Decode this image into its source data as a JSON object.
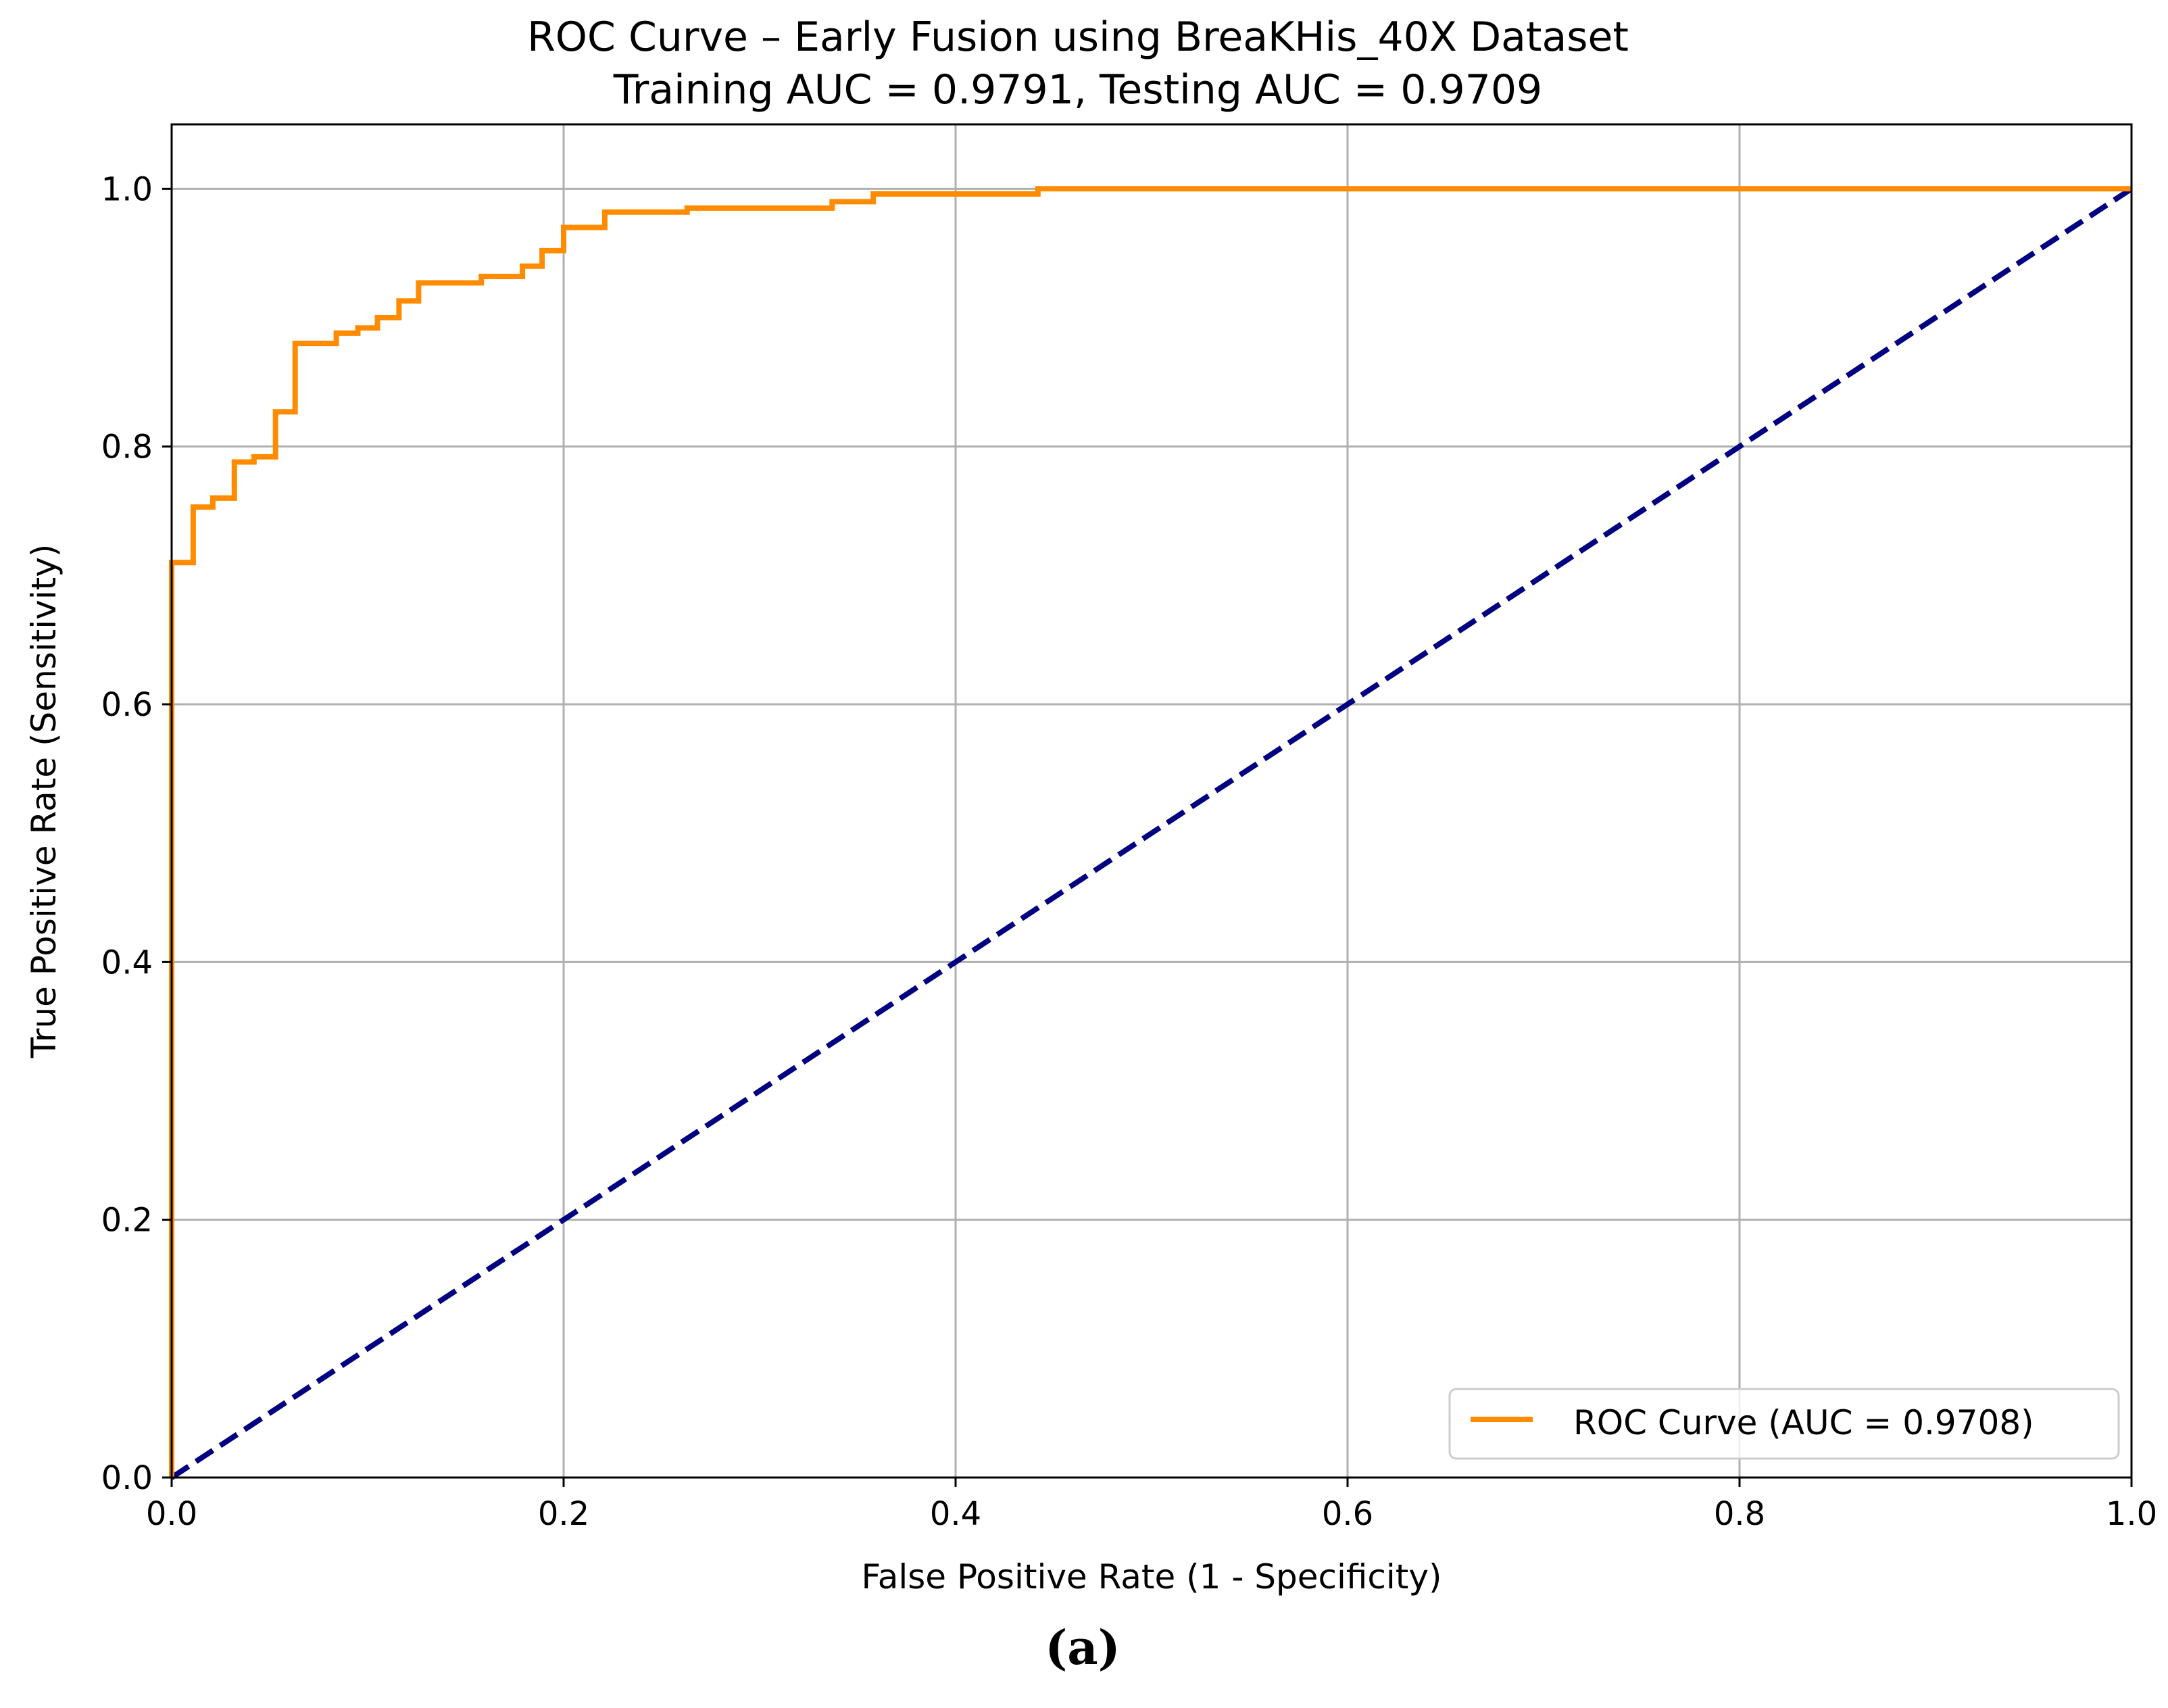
{
  "chart_data": {
    "type": "line",
    "title": "ROC Curve – Early Fusion using BreaKHis_40X Dataset",
    "subtitle": "Training AUC = 0.9791, Testing AUC = 0.9709",
    "xlabel": "False Positive Rate (1 - Specificity)",
    "ylabel": "True Positive Rate (Sensitivity)",
    "xlim": [
      0.0,
      1.0
    ],
    "ylim": [
      0.0,
      1.05
    ],
    "x_ticks": [
      "0.0",
      "0.2",
      "0.4",
      "0.6",
      "0.8",
      "1.0"
    ],
    "y_ticks": [
      "0.0",
      "0.2",
      "0.4",
      "0.6",
      "0.8",
      "1.0"
    ],
    "grid": true,
    "legend_position": "bottom-right",
    "series": [
      {
        "name": "ROC Curve (AUC = 0.9708)",
        "color": "#ff8c00",
        "style": "step",
        "x": [
          0.0,
          0.0,
          0.011,
          0.011,
          0.021,
          0.021,
          0.032,
          0.032,
          0.042,
          0.042,
          0.053,
          0.053,
          0.063,
          0.063,
          0.084,
          0.084,
          0.095,
          0.095,
          0.105,
          0.105,
          0.116,
          0.116,
          0.126,
          0.126,
          0.158,
          0.158,
          0.179,
          0.179,
          0.189,
          0.189,
          0.2,
          0.2,
          0.221,
          0.221,
          0.263,
          0.263,
          0.337,
          0.337,
          0.358,
          0.358,
          0.442,
          0.442,
          1.0
        ],
        "y": [
          0.0,
          0.71,
          0.71,
          0.753,
          0.753,
          0.76,
          0.76,
          0.788,
          0.788,
          0.792,
          0.792,
          0.827,
          0.827,
          0.88,
          0.88,
          0.888,
          0.888,
          0.892,
          0.892,
          0.9,
          0.9,
          0.913,
          0.913,
          0.927,
          0.927,
          0.932,
          0.932,
          0.94,
          0.94,
          0.952,
          0.952,
          0.97,
          0.97,
          0.982,
          0.982,
          0.985,
          0.985,
          0.99,
          0.99,
          0.996,
          0.996,
          1.0,
          1.0
        ]
      },
      {
        "name": "",
        "color": "#000080",
        "style": "dashed",
        "x": [
          0.0,
          1.0
        ],
        "y": [
          0.0,
          1.0
        ]
      }
    ]
  },
  "caption": "(a)"
}
